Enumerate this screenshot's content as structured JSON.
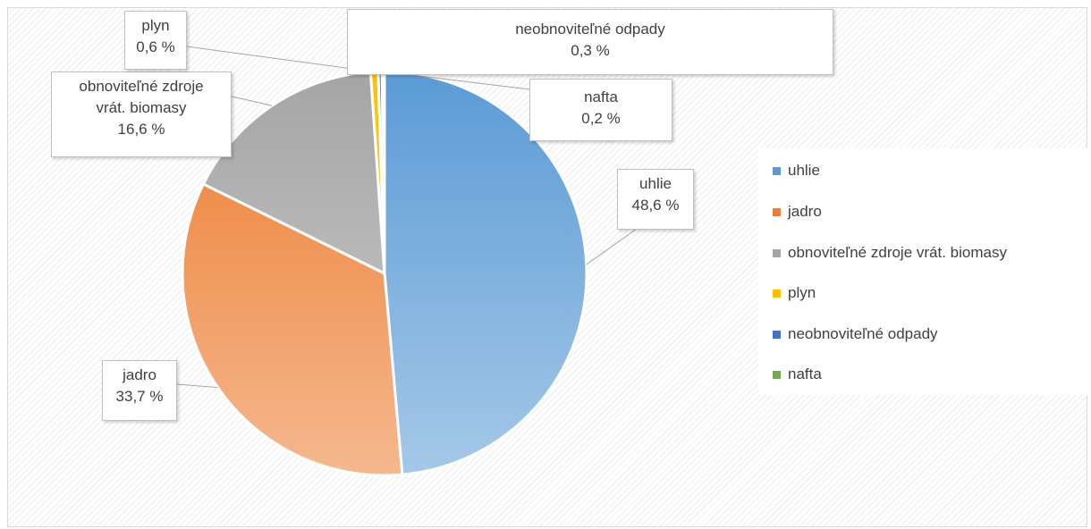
{
  "colors": {
    "uhlie": "#5b9bd5",
    "jadro": "#ed7d31",
    "obnovitelne": "#a5a5a5",
    "plyn": "#ffc000",
    "neobnovitelne": "#4472c4",
    "nafta": "#70ad47"
  },
  "chart_data": {
    "type": "pie",
    "title": "",
    "slices": [
      {
        "label": "uhlie",
        "value": 48.6,
        "value_label": "48,6 %",
        "color": "#5b9bd5"
      },
      {
        "label": "jadro",
        "value": 33.7,
        "value_label": "33,7 %",
        "color": "#ed7d31"
      },
      {
        "label": "obnoviteľné zdroje vrát. biomasy",
        "value": 16.6,
        "value_label": "16,6 %",
        "color": "#a5a5a5"
      },
      {
        "label": "plyn",
        "value": 0.6,
        "value_label": "0,6 %",
        "color": "#ffc000"
      },
      {
        "label": "neobnoviteľné odpady",
        "value": 0.3,
        "value_label": "0,3 %",
        "color": "#4472c4"
      },
      {
        "label": "nafta",
        "value": 0.2,
        "value_label": "0,2 %",
        "color": "#70ad47"
      }
    ],
    "callouts": {
      "uhlie": {
        "line1": "uhlie",
        "line2": "48,6 %"
      },
      "jadro": {
        "line1": "jadro",
        "line2": "33,7 %"
      },
      "obnovitelne": {
        "line1": "obnoviteľné zdroje",
        "line2": "vrát. biomasy",
        "line3": "16,6 %"
      },
      "plyn": {
        "line1": "plyn",
        "line2": "0,6 %"
      },
      "neobnovitelne": {
        "line1": "neobnoviteľné odpady",
        "line2": "0,3 %"
      },
      "nafta": {
        "line1": "nafta",
        "line2": "0,2 %"
      }
    },
    "legend": {
      "position": "right",
      "items": [
        "uhlie",
        "jadro",
        "obnoviteľné zdroje vrát. biomasy",
        "plyn",
        "neobnoviteľné odpady",
        "nafta"
      ]
    }
  }
}
